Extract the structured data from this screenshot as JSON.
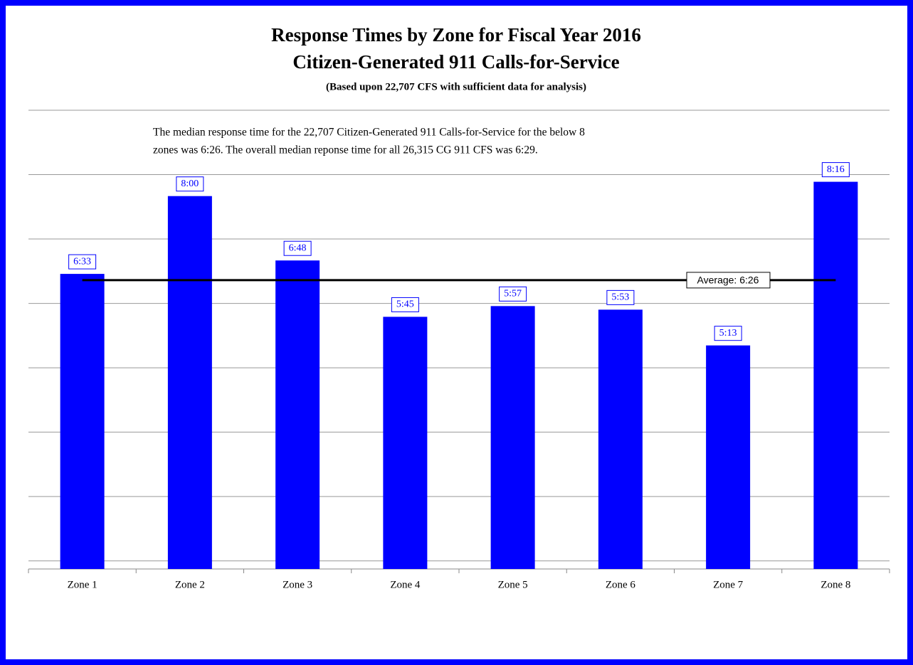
{
  "chart_data": {
    "type": "bar",
    "title": [
      "Response Times by Zone for Fiscal Year 2016",
      "Citizen-Generated 911 Calls-for-Service"
    ],
    "subtitle": "(Based upon 22,707 CFS with sufficient data for analysis)",
    "note": [
      "The median response time for the 22,707 Citizen-Generated 911 Calls-for-Service for the below 8",
      "zones was 6:26.  The overall median reponse time for all 26,315 CG 911 CFS was 6:29."
    ],
    "categories": [
      "Zone 1",
      "Zone 2",
      "Zone 3",
      "Zone 4",
      "Zone 5",
      "Zone 6",
      "Zone 7",
      "Zone 8"
    ],
    "values": [
      6.55,
      8.0,
      6.8,
      5.75,
      5.95,
      5.8833,
      5.2167,
      8.2667
    ],
    "value_labels": [
      "6:33",
      "8:00",
      "6:48",
      "5:45",
      "5:57",
      "5:53",
      "5:13",
      "8:16"
    ],
    "color": "#0000ff",
    "average": {
      "value": 6.4333,
      "label": "Average: 6:26"
    },
    "ylim": [
      1.05,
      9.6
    ],
    "yticks": [
      1.2,
      2.4,
      3.6,
      4.8,
      6,
      7.2,
      8.4,
      9.6
    ],
    "grid": true
  }
}
